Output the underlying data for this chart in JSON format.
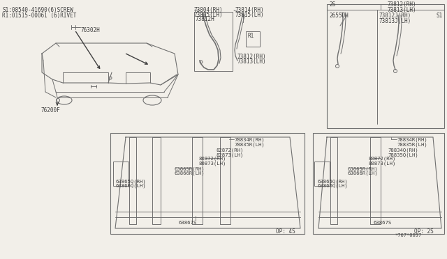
{
  "bg_color": "#f2efe9",
  "line_color": "#707070",
  "dark_color": "#404040",
  "legend_text1": "S1:08540-41690(6)SCREW",
  "legend_text2": "R1:01515-00061 (6)RIVET",
  "part_76302H": "76302H",
  "part_76200F": "76200F",
  "part_73804RH": "73804(RH)",
  "part_73805LH": "73805(LH)",
  "part_73812H": "73812H",
  "part_73814RH": "73814(RH)",
  "part_73815LH": "73815(LH)",
  "part_R1": "R1",
  "part_73812RH": "73812(RH)",
  "part_73813LH": "73813(LH)",
  "part_2S": "2S",
  "part_26550H": "26550H",
  "part_73812JRH": "73812J(RH)",
  "part_73813JLH": "73813J(LH)",
  "part_S1": "S1",
  "part_78834RRH": "78834R(RH)",
  "part_78835RLH": "78835R(LH)",
  "part_82872RH": "82872(RH)",
  "part_82873LH": "82873(LH)",
  "part_80872RH": "80872(RH)",
  "part_80873LH": "80873(LH)",
  "part_63865RRH": "63865R(RH)",
  "part_63866RLH": "63866R(LH)",
  "part_63865QRH": "63865Q(RH)",
  "part_63866QLH": "63866Q(LH)",
  "part_63867S": "63867S",
  "part_OP4S": "OP: 4S",
  "part_78834RRH2": "78834R(RH)",
  "part_78835RLH2": "78835R(LH)",
  "part_78834QRH": "78834Q(RH)",
  "part_78835QLH": "78835Q(LH)",
  "part_80872RH2": "80872(RH)",
  "part_80873LH2": "80873(LH)",
  "part_63865RRH2": "63865R(RH)",
  "part_63866RLH2": "63866R(LH)",
  "part_63865QRH2": "63865Q(RH)",
  "part_63866QLH2": "63866Q(LH)",
  "part_63867S2": "63867S",
  "part_OP2S": "OP: 2S",
  "part_num": "*767*0097",
  "font_size": 5.5
}
